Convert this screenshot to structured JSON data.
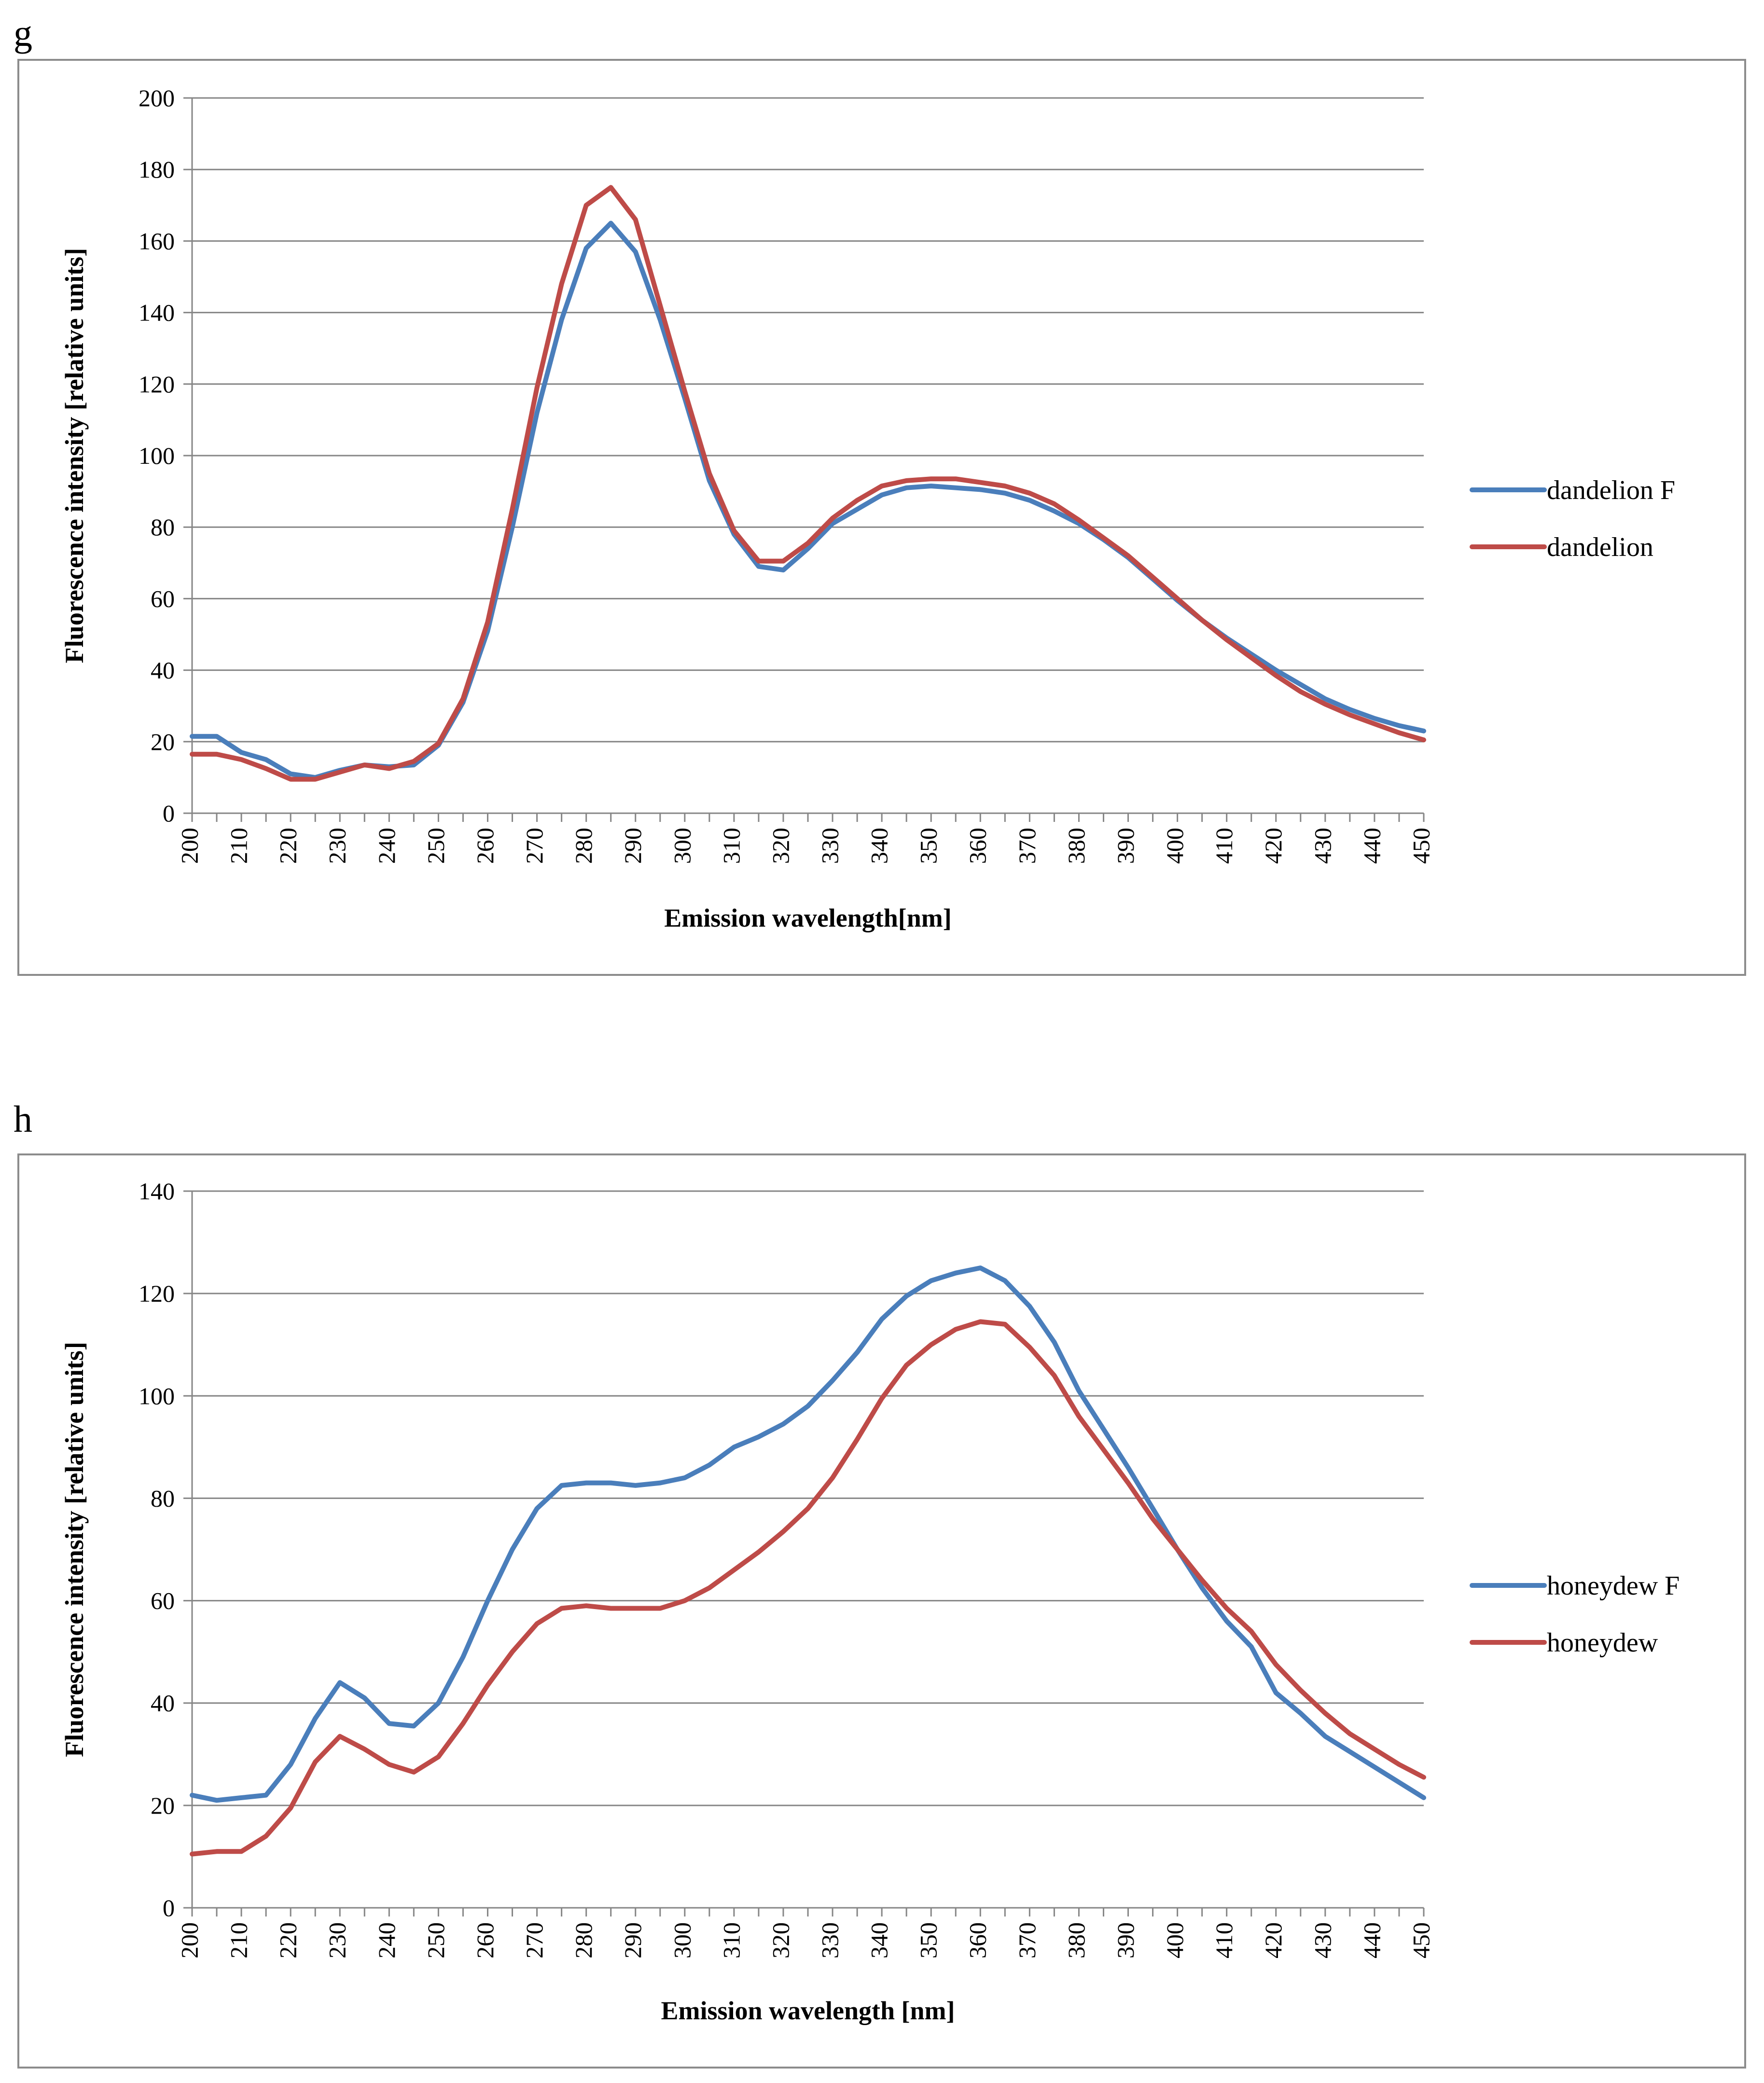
{
  "figure": {
    "labels": [
      "g",
      "h"
    ]
  },
  "chart_data": [
    {
      "id": "g",
      "type": "line",
      "panel_label": "g",
      "title": "",
      "xlabel": "Emission wavelength[nm]",
      "ylabel": "Fluorescence intensity [relative units]",
      "xlim": [
        200,
        450
      ],
      "ylim": [
        0,
        200
      ],
      "yticks": [
        0,
        20,
        40,
        60,
        80,
        100,
        120,
        140,
        160,
        180,
        200
      ],
      "xticks": [
        200,
        210,
        220,
        230,
        240,
        250,
        260,
        270,
        280,
        290,
        300,
        310,
        320,
        330,
        340,
        350,
        360,
        370,
        380,
        390,
        400,
        410,
        420,
        430,
        440,
        450
      ],
      "grid": true,
      "legend": "right",
      "x": [
        200,
        205,
        210,
        215,
        220,
        225,
        230,
        235,
        240,
        245,
        250,
        255,
        260,
        265,
        270,
        275,
        280,
        285,
        290,
        295,
        300,
        305,
        310,
        315,
        320,
        325,
        330,
        335,
        340,
        345,
        350,
        355,
        360,
        365,
        370,
        375,
        380,
        385,
        390,
        395,
        400,
        405,
        410,
        415,
        420,
        425,
        430,
        435,
        440,
        445,
        450
      ],
      "series": [
        {
          "name": "dandelion F",
          "color": "#4a7ebb",
          "values": [
            21.5,
            21.5,
            17,
            15,
            11,
            10,
            12,
            13.5,
            13,
            13.5,
            19,
            31,
            51,
            80,
            112,
            138,
            158,
            165,
            157,
            138,
            116,
            93,
            78,
            69,
            68,
            74,
            81,
            85,
            89,
            91,
            91.5,
            91,
            90.5,
            89.5,
            87.5,
            84.5,
            81,
            76.5,
            71.5,
            65.5,
            59.5,
            54,
            49,
            44.5,
            40,
            36,
            32,
            29,
            26.5,
            24.5,
            23
          ]
        },
        {
          "name": "dandelion",
          "color": "#be4b48",
          "values": [
            16.5,
            16.5,
            15,
            12.5,
            9.5,
            9.5,
            11.5,
            13.5,
            12.5,
            14.5,
            19.5,
            32,
            53.5,
            85,
            119,
            148,
            170,
            175,
            166,
            142,
            118,
            95,
            79,
            70.5,
            70.5,
            75.5,
            82.5,
            87.5,
            91.5,
            93,
            93.5,
            93.5,
            92.5,
            91.5,
            89.5,
            86.5,
            82,
            77,
            72,
            66,
            60,
            54,
            48.5,
            43.5,
            38.5,
            34,
            30.5,
            27.5,
            25,
            22.5,
            20.5
          ]
        }
      ]
    },
    {
      "id": "h",
      "type": "line",
      "panel_label": "h",
      "title": "",
      "xlabel": "Emission wavelength  [nm]",
      "ylabel": "Fluorescence intensity [relative units]",
      "xlim": [
        200,
        450
      ],
      "ylim": [
        0,
        140
      ],
      "yticks": [
        0,
        20,
        40,
        60,
        80,
        100,
        120,
        140
      ],
      "xticks": [
        200,
        210,
        220,
        230,
        240,
        250,
        260,
        270,
        280,
        290,
        300,
        310,
        320,
        330,
        340,
        350,
        360,
        370,
        380,
        390,
        400,
        410,
        420,
        430,
        440,
        450
      ],
      "grid": true,
      "legend": "right",
      "x": [
        200,
        205,
        210,
        215,
        220,
        225,
        230,
        235,
        240,
        245,
        250,
        255,
        260,
        265,
        270,
        275,
        280,
        285,
        290,
        295,
        300,
        305,
        310,
        315,
        320,
        325,
        330,
        335,
        340,
        345,
        350,
        355,
        360,
        365,
        370,
        375,
        380,
        385,
        390,
        395,
        400,
        405,
        410,
        415,
        420,
        425,
        430,
        435,
        440,
        445,
        450
      ],
      "series": [
        {
          "name": "honeydew F",
          "color": "#4a7ebb",
          "values": [
            22,
            21,
            21.5,
            22,
            28,
            37,
            44,
            41,
            36,
            35.5,
            40,
            49,
            60,
            70,
            78,
            82.5,
            83,
            83,
            82.5,
            83,
            84,
            86.5,
            90,
            92,
            94.5,
            98,
            103,
            108.5,
            115,
            119.5,
            122.5,
            124,
            125,
            122.5,
            117.5,
            110.5,
            101,
            93.5,
            86,
            78,
            70,
            62.5,
            56,
            51,
            42,
            38,
            33.5,
            30.5,
            27.5,
            24.5,
            21.5
          ]
        },
        {
          "name": "honeydew",
          "color": "#be4b48",
          "values": [
            10.5,
            11,
            11,
            14,
            19.5,
            28.5,
            33.5,
            31,
            28,
            26.5,
            29.5,
            36,
            43.5,
            50,
            55.5,
            58.5,
            59,
            58.5,
            58.5,
            58.5,
            60,
            62.5,
            66,
            69.5,
            73.5,
            78,
            84,
            91.5,
            99.5,
            106,
            110,
            113,
            114.5,
            114,
            109.5,
            104,
            96,
            89.5,
            83,
            76,
            70,
            64,
            58.5,
            54,
            47.5,
            42.5,
            38,
            34,
            31,
            28,
            25.5
          ]
        }
      ]
    }
  ]
}
